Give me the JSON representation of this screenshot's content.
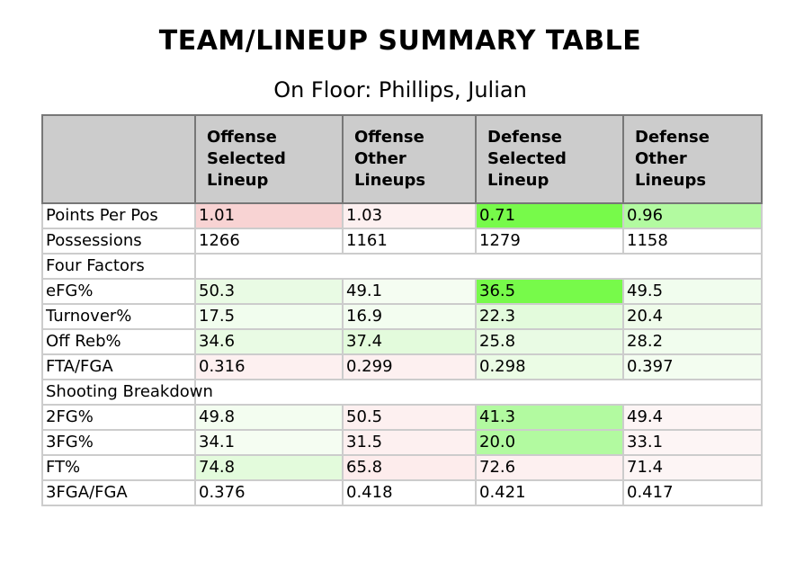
{
  "title": "TEAM/LINEUP SUMMARY TABLE",
  "subtitle": "On Floor: Phillips, Julian",
  "columns": [
    "",
    "Offense Selected Lineup",
    "Offense Other Lineups",
    "Defense Selected Lineup",
    "Defense Other Lineups"
  ],
  "rows": [
    {
      "label": "Points Per Pos",
      "cells": [
        {
          "value": "1.01",
          "color": "#f8d3d3"
        },
        {
          "value": "1.03",
          "color": "#fdf0f0"
        },
        {
          "value": "0.71",
          "color": "#77fa4a"
        },
        {
          "value": "0.96",
          "color": "#b2faa0"
        }
      ]
    },
    {
      "label": "Possessions",
      "cells": [
        {
          "value": "1266",
          "color": "#ffffff"
        },
        {
          "value": "1161",
          "color": "#ffffff"
        },
        {
          "value": "1279",
          "color": "#ffffff"
        },
        {
          "value": "1158",
          "color": "#ffffff"
        }
      ]
    },
    {
      "label": "Four Factors",
      "section": true
    },
    {
      "label": "eFG%",
      "cells": [
        {
          "value": "50.3",
          "color": "#e9fbe4"
        },
        {
          "value": "49.1",
          "color": "#f5fdf2"
        },
        {
          "value": "36.5",
          "color": "#77fa4a"
        },
        {
          "value": "49.5",
          "color": "#f1fdee"
        }
      ]
    },
    {
      "label": "Turnover%",
      "cells": [
        {
          "value": "17.5",
          "color": "#f1fdee"
        },
        {
          "value": "16.9",
          "color": "#f3fdf0"
        },
        {
          "value": "22.3",
          "color": "#e3fbdc"
        },
        {
          "value": "20.4",
          "color": "#effcea"
        }
      ]
    },
    {
      "label": "Off Reb%",
      "cells": [
        {
          "value": "34.6",
          "color": "#e9fbe4"
        },
        {
          "value": "37.4",
          "color": "#e3fbdc"
        },
        {
          "value": "25.8",
          "color": "#e9fbe4"
        },
        {
          "value": "28.2",
          "color": "#f1fdee"
        }
      ]
    },
    {
      "label": "FTA/FGA",
      "cells": [
        {
          "value": "0.316",
          "color": "#fdf0f0"
        },
        {
          "value": "0.299",
          "color": "#fdf0f0"
        },
        {
          "value": "0.298",
          "color": "#ebfce5"
        },
        {
          "value": "0.397",
          "color": "#f3fdf0"
        }
      ]
    },
    {
      "label": "Shooting Breakdown",
      "section": true,
      "tall": true
    },
    {
      "label": "2FG%",
      "cells": [
        {
          "value": "49.8",
          "color": "#f3fdf0"
        },
        {
          "value": "50.5",
          "color": "#fdf0f0"
        },
        {
          "value": "41.3",
          "color": "#b2faa0"
        },
        {
          "value": "49.4",
          "color": "#fdf5f5"
        }
      ]
    },
    {
      "label": "3FG%",
      "cells": [
        {
          "value": "34.1",
          "color": "#f5fdf2"
        },
        {
          "value": "31.5",
          "color": "#fdf0f0"
        },
        {
          "value": "20.0",
          "color": "#b2faa0"
        },
        {
          "value": "33.1",
          "color": "#fdf5f5"
        }
      ]
    },
    {
      "label": "FT%",
      "cells": [
        {
          "value": "74.8",
          "color": "#e3fbdc"
        },
        {
          "value": "65.8",
          "color": "#fdecec"
        },
        {
          "value": "72.6",
          "color": "#fdf0f0"
        },
        {
          "value": "71.4",
          "color": "#fdf5f5"
        }
      ]
    },
    {
      "label": "3FGA/FGA",
      "cells": [
        {
          "value": "0.376",
          "color": "#ffffff"
        },
        {
          "value": "0.418",
          "color": "#ffffff"
        },
        {
          "value": "0.421",
          "color": "#ffffff"
        },
        {
          "value": "0.417",
          "color": "#ffffff"
        }
      ]
    }
  ]
}
